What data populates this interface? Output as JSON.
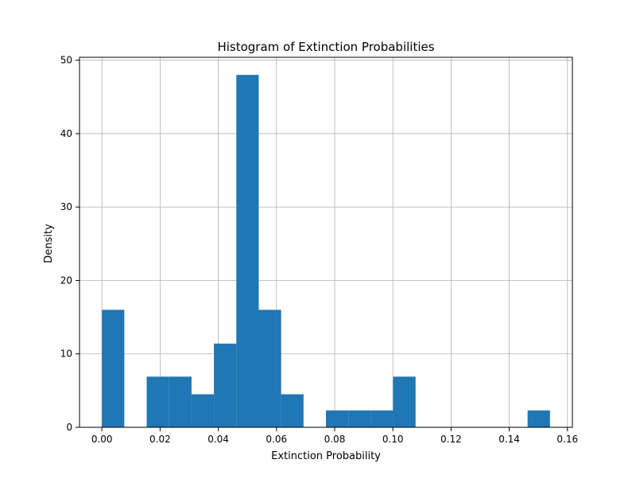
{
  "chart_data": {
    "type": "bar",
    "title": "Histogram of Extinction Probabilities",
    "xlabel": "Extinction Probability",
    "ylabel": "Density",
    "xlim": [
      -0.0077,
      0.1617
    ],
    "ylim": [
      0,
      50.4
    ],
    "xticks": [
      0.0,
      0.02,
      0.04,
      0.06,
      0.08,
      0.1,
      0.12,
      0.14,
      0.16
    ],
    "xtick_labels": [
      "0.00",
      "0.02",
      "0.04",
      "0.06",
      "0.08",
      "0.10",
      "0.12",
      "0.14",
      "0.16"
    ],
    "yticks": [
      0,
      10,
      20,
      30,
      40,
      50
    ],
    "ytick_labels": [
      "0",
      "10",
      "20",
      "30",
      "40",
      "50"
    ],
    "grid": true,
    "bar_color": "#1f77b4",
    "bins": [
      {
        "x0": 0.0,
        "x1": 0.0077,
        "value": 16.0
      },
      {
        "x0": 0.0077,
        "x1": 0.0154,
        "value": 0.0
      },
      {
        "x0": 0.0154,
        "x1": 0.0231,
        "value": 6.9
      },
      {
        "x0": 0.0231,
        "x1": 0.0308,
        "value": 6.9
      },
      {
        "x0": 0.0308,
        "x1": 0.0385,
        "value": 4.5
      },
      {
        "x0": 0.0385,
        "x1": 0.0462,
        "value": 11.4
      },
      {
        "x0": 0.0462,
        "x1": 0.0539,
        "value": 48.0
      },
      {
        "x0": 0.0539,
        "x1": 0.0616,
        "value": 16.0
      },
      {
        "x0": 0.0616,
        "x1": 0.0693,
        "value": 4.5
      },
      {
        "x0": 0.0693,
        "x1": 0.077,
        "value": 0.0
      },
      {
        "x0": 0.077,
        "x1": 0.0847,
        "value": 2.3
      },
      {
        "x0": 0.0847,
        "x1": 0.0924,
        "value": 2.3
      },
      {
        "x0": 0.0924,
        "x1": 0.1001,
        "value": 2.3
      },
      {
        "x0": 0.1001,
        "x1": 0.1078,
        "value": 6.9
      },
      {
        "x0": 0.1078,
        "x1": 0.1155,
        "value": 0.0
      },
      {
        "x0": 0.1155,
        "x1": 0.1232,
        "value": 0.0
      },
      {
        "x0": 0.1232,
        "x1": 0.1309,
        "value": 0.0
      },
      {
        "x0": 0.1309,
        "x1": 0.1386,
        "value": 0.0
      },
      {
        "x0": 0.1386,
        "x1": 0.1463,
        "value": 0.0
      },
      {
        "x0": 0.1463,
        "x1": 0.154,
        "value": 2.3
      }
    ]
  }
}
